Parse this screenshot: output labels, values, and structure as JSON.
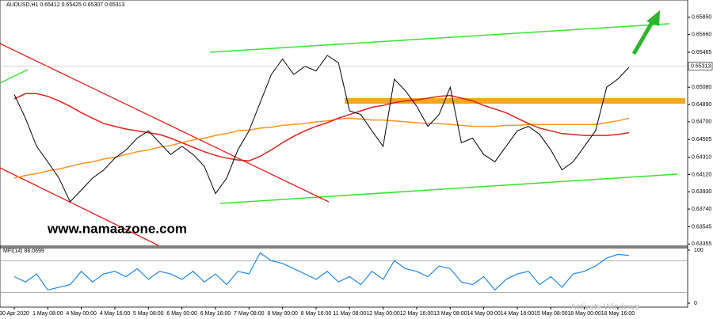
{
  "chart_data": [
    {
      "type": "line",
      "title": "AUDUSD,H1 0.65412 0.65425 0.65307 0.65313",
      "watermark": "www.namaazone.com",
      "notice": "Activate Windows",
      "categories": [
        "30 Apr 2020",
        null,
        null,
        "1 May 08:00",
        null,
        null,
        "4 May 00:00",
        null,
        null,
        "4 May 16:00",
        null,
        null,
        "5 May 08:00",
        null,
        null,
        "6 May 00:00",
        null,
        null,
        "6 May 16:00",
        null,
        null,
        "7 May 08:00",
        null,
        null,
        "8 May 00:00",
        null,
        null,
        "8 May 16:00",
        null,
        null,
        "11 May 08:00",
        null,
        null,
        "12 May 00:00",
        null,
        null,
        "12 May 16:00",
        null,
        null,
        "13 May 08:00",
        null,
        null,
        "14 May 00:00",
        null,
        null,
        "14 May 16:00",
        null,
        null,
        "15 May 08:00",
        null,
        null,
        "18 May 00:00",
        null,
        null,
        "18 May 16:00",
        null
      ],
      "series": [
        {
          "color": "#000000",
          "values": [
            0.65,
            0.6474,
            0.6443,
            0.6426,
            0.6408,
            0.6382,
            0.6395,
            0.6408,
            0.6417,
            0.643,
            0.6439,
            0.6452,
            0.646,
            0.6447,
            0.6434,
            0.6443,
            0.6434,
            0.6421,
            0.6391,
            0.6408,
            0.6439,
            0.646,
            0.6491,
            0.6522,
            0.6539,
            0.6522,
            0.6531,
            0.6526,
            0.6543,
            0.6535,
            0.6482,
            0.6478,
            0.646,
            0.6443,
            0.6517,
            0.6504,
            0.6487,
            0.6465,
            0.6478,
            0.6508,
            0.6447,
            0.6452,
            0.6434,
            0.6426,
            0.6443,
            0.646,
            0.6465,
            0.6456,
            0.6439,
            0.6417,
            0.6426,
            0.6443,
            0.646,
            0.6508,
            0.6517,
            0.653
          ]
        },
        {
          "color": "#e0201a",
          "values": [
            0.6495,
            0.6501,
            0.6501,
            0.6498,
            0.6493,
            0.6487,
            0.648,
            0.6474,
            0.6468,
            0.6465,
            0.6462,
            0.646,
            0.6458,
            0.6456,
            0.6452,
            0.6447,
            0.6442,
            0.6437,
            0.6433,
            0.643,
            0.6428,
            0.6427,
            0.6432,
            0.6439,
            0.6447,
            0.6454,
            0.646,
            0.6465,
            0.6469,
            0.6474,
            0.6478,
            0.6482,
            0.6486,
            0.6488,
            0.6491,
            0.6493,
            0.6494,
            0.6496,
            0.6498,
            0.6499,
            0.6496,
            0.6493,
            0.6488,
            0.6484,
            0.648,
            0.6474,
            0.6468,
            0.6463,
            0.646,
            0.6457,
            0.6456,
            0.6455,
            0.6455,
            0.6455,
            0.6456,
            0.6458
          ]
        },
        {
          "color": "#f7941d",
          "values": [
            0.6408,
            0.6411,
            0.6413,
            0.6416,
            0.6418,
            0.6421,
            0.6424,
            0.6426,
            0.6429,
            0.6431,
            0.6434,
            0.6437,
            0.6439,
            0.6442,
            0.6444,
            0.6447,
            0.645,
            0.6452,
            0.6455,
            0.6457,
            0.646,
            0.6461,
            0.6463,
            0.6464,
            0.6466,
            0.6467,
            0.6468,
            0.647,
            0.6471,
            0.6473,
            0.6474,
            0.6473,
            0.6472,
            0.6472,
            0.6471,
            0.647,
            0.6469,
            0.6468,
            0.6468,
            0.6467,
            0.6466,
            0.6465,
            0.6465,
            0.6465,
            0.6466,
            0.6466,
            0.6467,
            0.6467,
            0.6467,
            0.6467,
            0.6467,
            0.6467,
            0.6467,
            0.6469,
            0.6471,
            0.6474
          ]
        }
      ],
      "current_price": {
        "value": 0.65313,
        "label": "0.65313"
      },
      "ylim": [
        0.6334,
        0.6604
      ],
      "yticks": [
        {
          "value": 0.6585,
          "label": "0.65850"
        },
        {
          "value": 0.6566,
          "label": "0.65660"
        },
        {
          "value": 0.65465,
          "label": "0.65465"
        },
        {
          "value": 0.6508,
          "label": "0.65080"
        },
        {
          "value": 0.6489,
          "label": "0.64890"
        },
        {
          "value": 0.647,
          "label": "0.64700"
        },
        {
          "value": 0.64505,
          "label": "0.64505"
        },
        {
          "value": 0.6431,
          "label": "0.64310"
        },
        {
          "value": 0.6412,
          "label": "0.64120"
        },
        {
          "value": 0.6393,
          "label": "0.63930"
        },
        {
          "value": 0.6374,
          "label": "0.63740"
        },
        {
          "value": 0.63545,
          "label": "0.63545"
        },
        {
          "value": 0.63355,
          "label": "0.63355"
        }
      ]
    },
    {
      "type": "line",
      "title": "MFI(14) 88.0699",
      "color": "#1e88e5",
      "values": [
        50,
        40,
        55,
        25,
        30,
        35,
        60,
        40,
        55,
        60,
        50,
        65,
        45,
        60,
        55,
        45,
        60,
        40,
        55,
        35,
        60,
        55,
        95,
        80,
        75,
        65,
        55,
        45,
        60,
        40,
        50,
        35,
        60,
        45,
        80,
        65,
        60,
        50,
        70,
        65,
        40,
        35,
        50,
        25,
        45,
        55,
        60,
        35,
        50,
        30,
        55,
        60,
        70,
        85,
        92,
        90
      ],
      "levels": [
        20,
        80
      ],
      "ylim": [
        0,
        100
      ],
      "yticks": [
        0,
        100
      ]
    }
  ]
}
